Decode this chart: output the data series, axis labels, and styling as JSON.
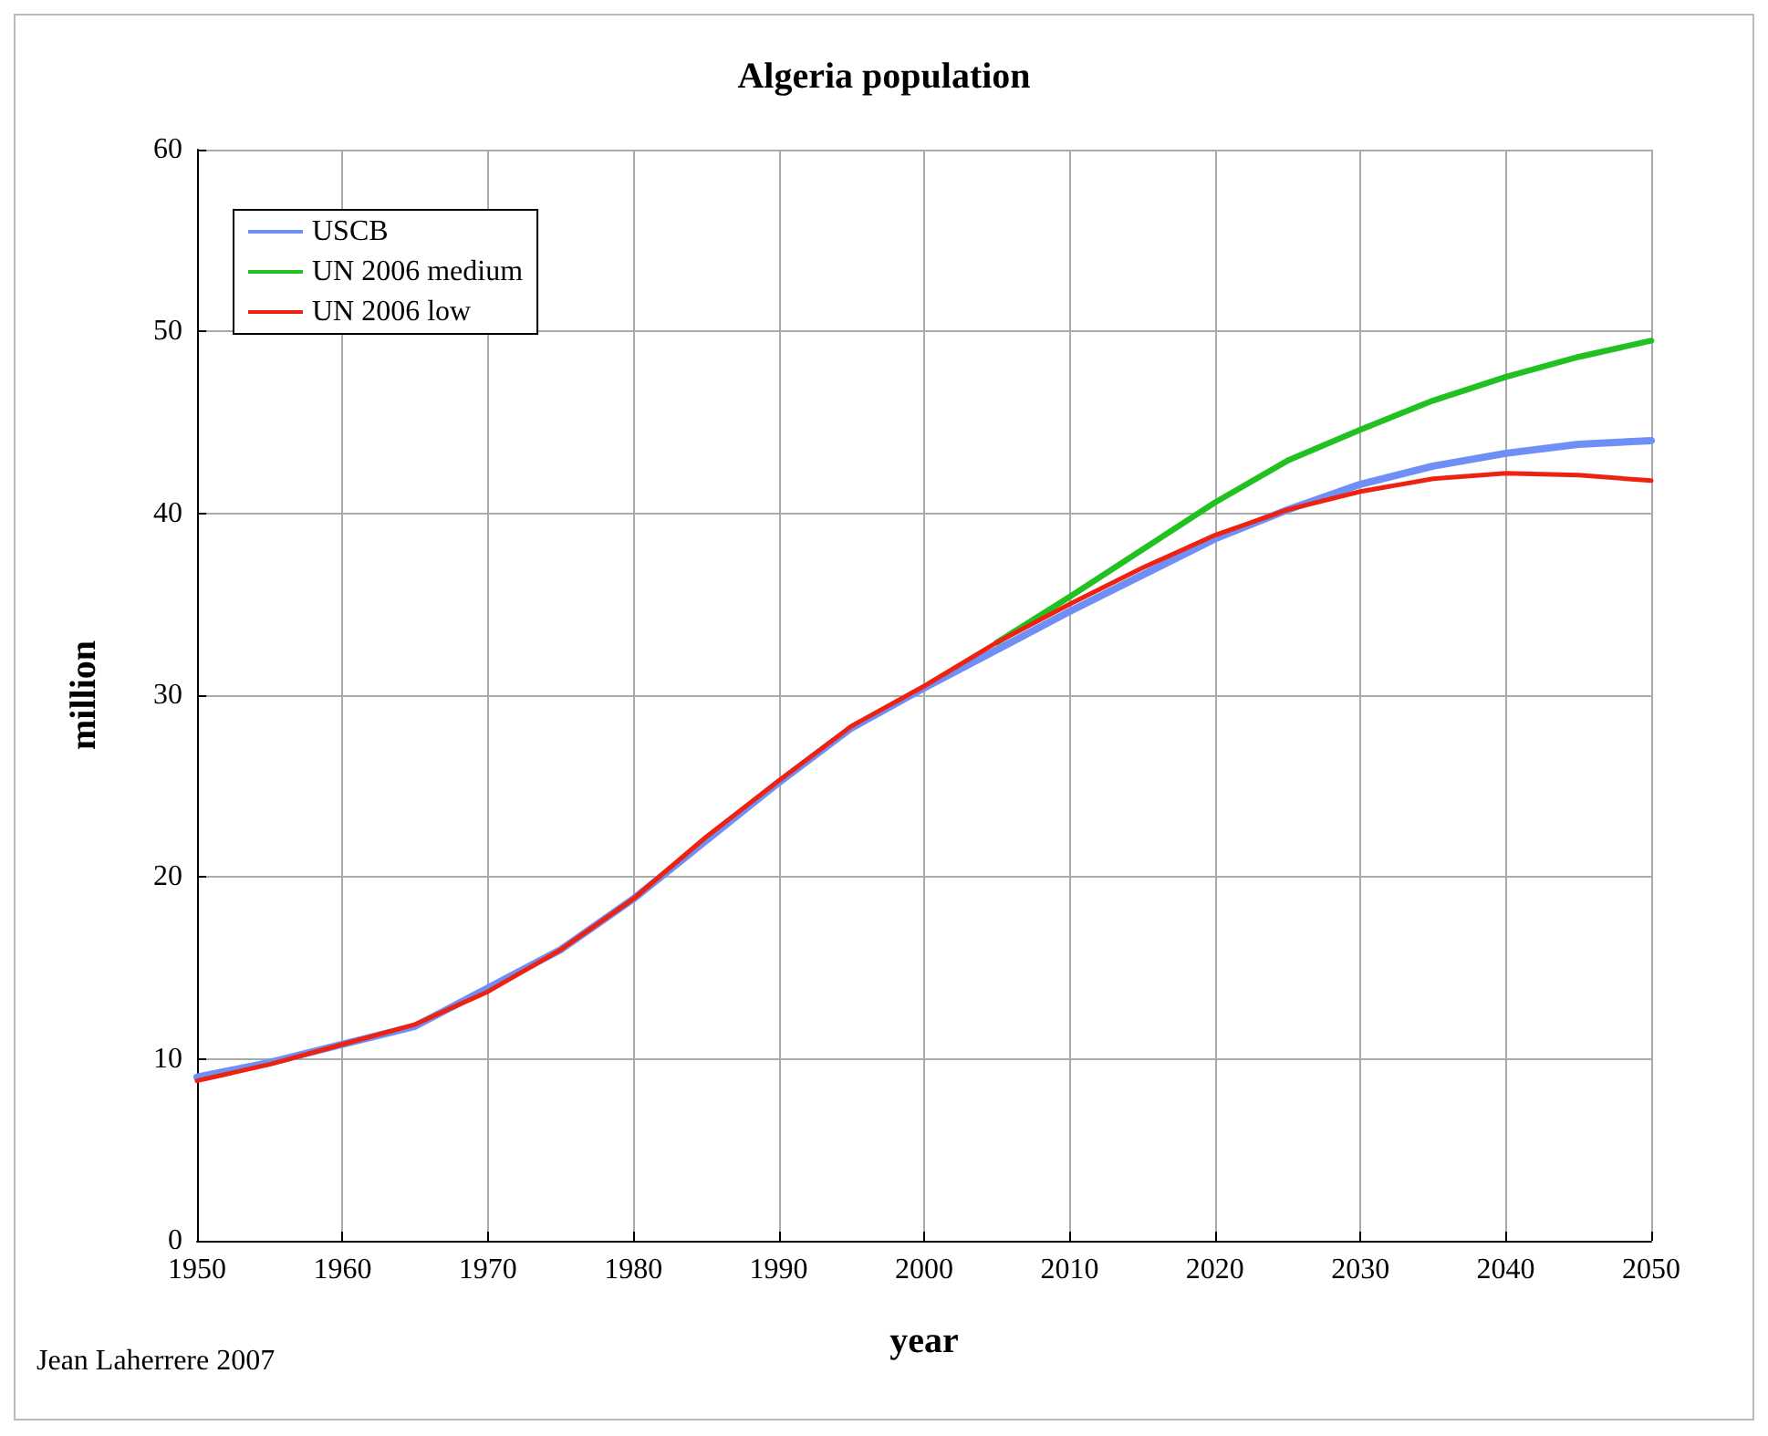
{
  "chart_data": {
    "type": "line",
    "title": "Algeria population",
    "xlabel": "year",
    "ylabel": "million",
    "annotations": [
      "Jean Laherrere 2007"
    ],
    "x": [
      1950,
      1955,
      1960,
      1965,
      1970,
      1975,
      1980,
      1985,
      1990,
      1995,
      2000,
      2005,
      2010,
      2015,
      2020,
      2025,
      2030,
      2035,
      2040,
      2045,
      2050
    ],
    "series": [
      {
        "name": "USCB",
        "color": "#6f8ff7",
        "values": [
          9.0,
          9.8,
          10.8,
          11.8,
          13.9,
          16.0,
          18.8,
          22.0,
          25.2,
          28.2,
          30.4,
          32.5,
          34.6,
          36.6,
          38.6,
          40.2,
          41.6,
          42.6,
          43.3,
          43.8,
          44.0
        ]
      },
      {
        "name": "UN 2006 medium",
        "color": "#22c122",
        "values": [
          null,
          null,
          null,
          null,
          null,
          null,
          null,
          null,
          null,
          null,
          null,
          32.9,
          35.4,
          38.0,
          40.6,
          42.9,
          44.6,
          46.2,
          47.5,
          48.6,
          49.5
        ]
      },
      {
        "name": "UN 2006 low",
        "color": "#ee2211",
        "values": [
          8.8,
          9.7,
          10.8,
          11.9,
          13.7,
          16.0,
          18.8,
          22.2,
          25.3,
          28.3,
          30.5,
          32.9,
          35.0,
          37.0,
          38.8,
          40.2,
          41.2,
          41.9,
          42.2,
          42.1,
          41.8
        ]
      }
    ],
    "xlim": [
      1950,
      2050
    ],
    "xticks": [
      1950,
      1960,
      1970,
      1980,
      1990,
      2000,
      2010,
      2020,
      2030,
      2040,
      2050
    ],
    "ylim": [
      0,
      60
    ],
    "yticks": [
      0,
      10,
      20,
      30,
      40,
      50,
      60
    ],
    "grid": true,
    "legend": "top left",
    "marker": "none",
    "line_style": "solid"
  }
}
